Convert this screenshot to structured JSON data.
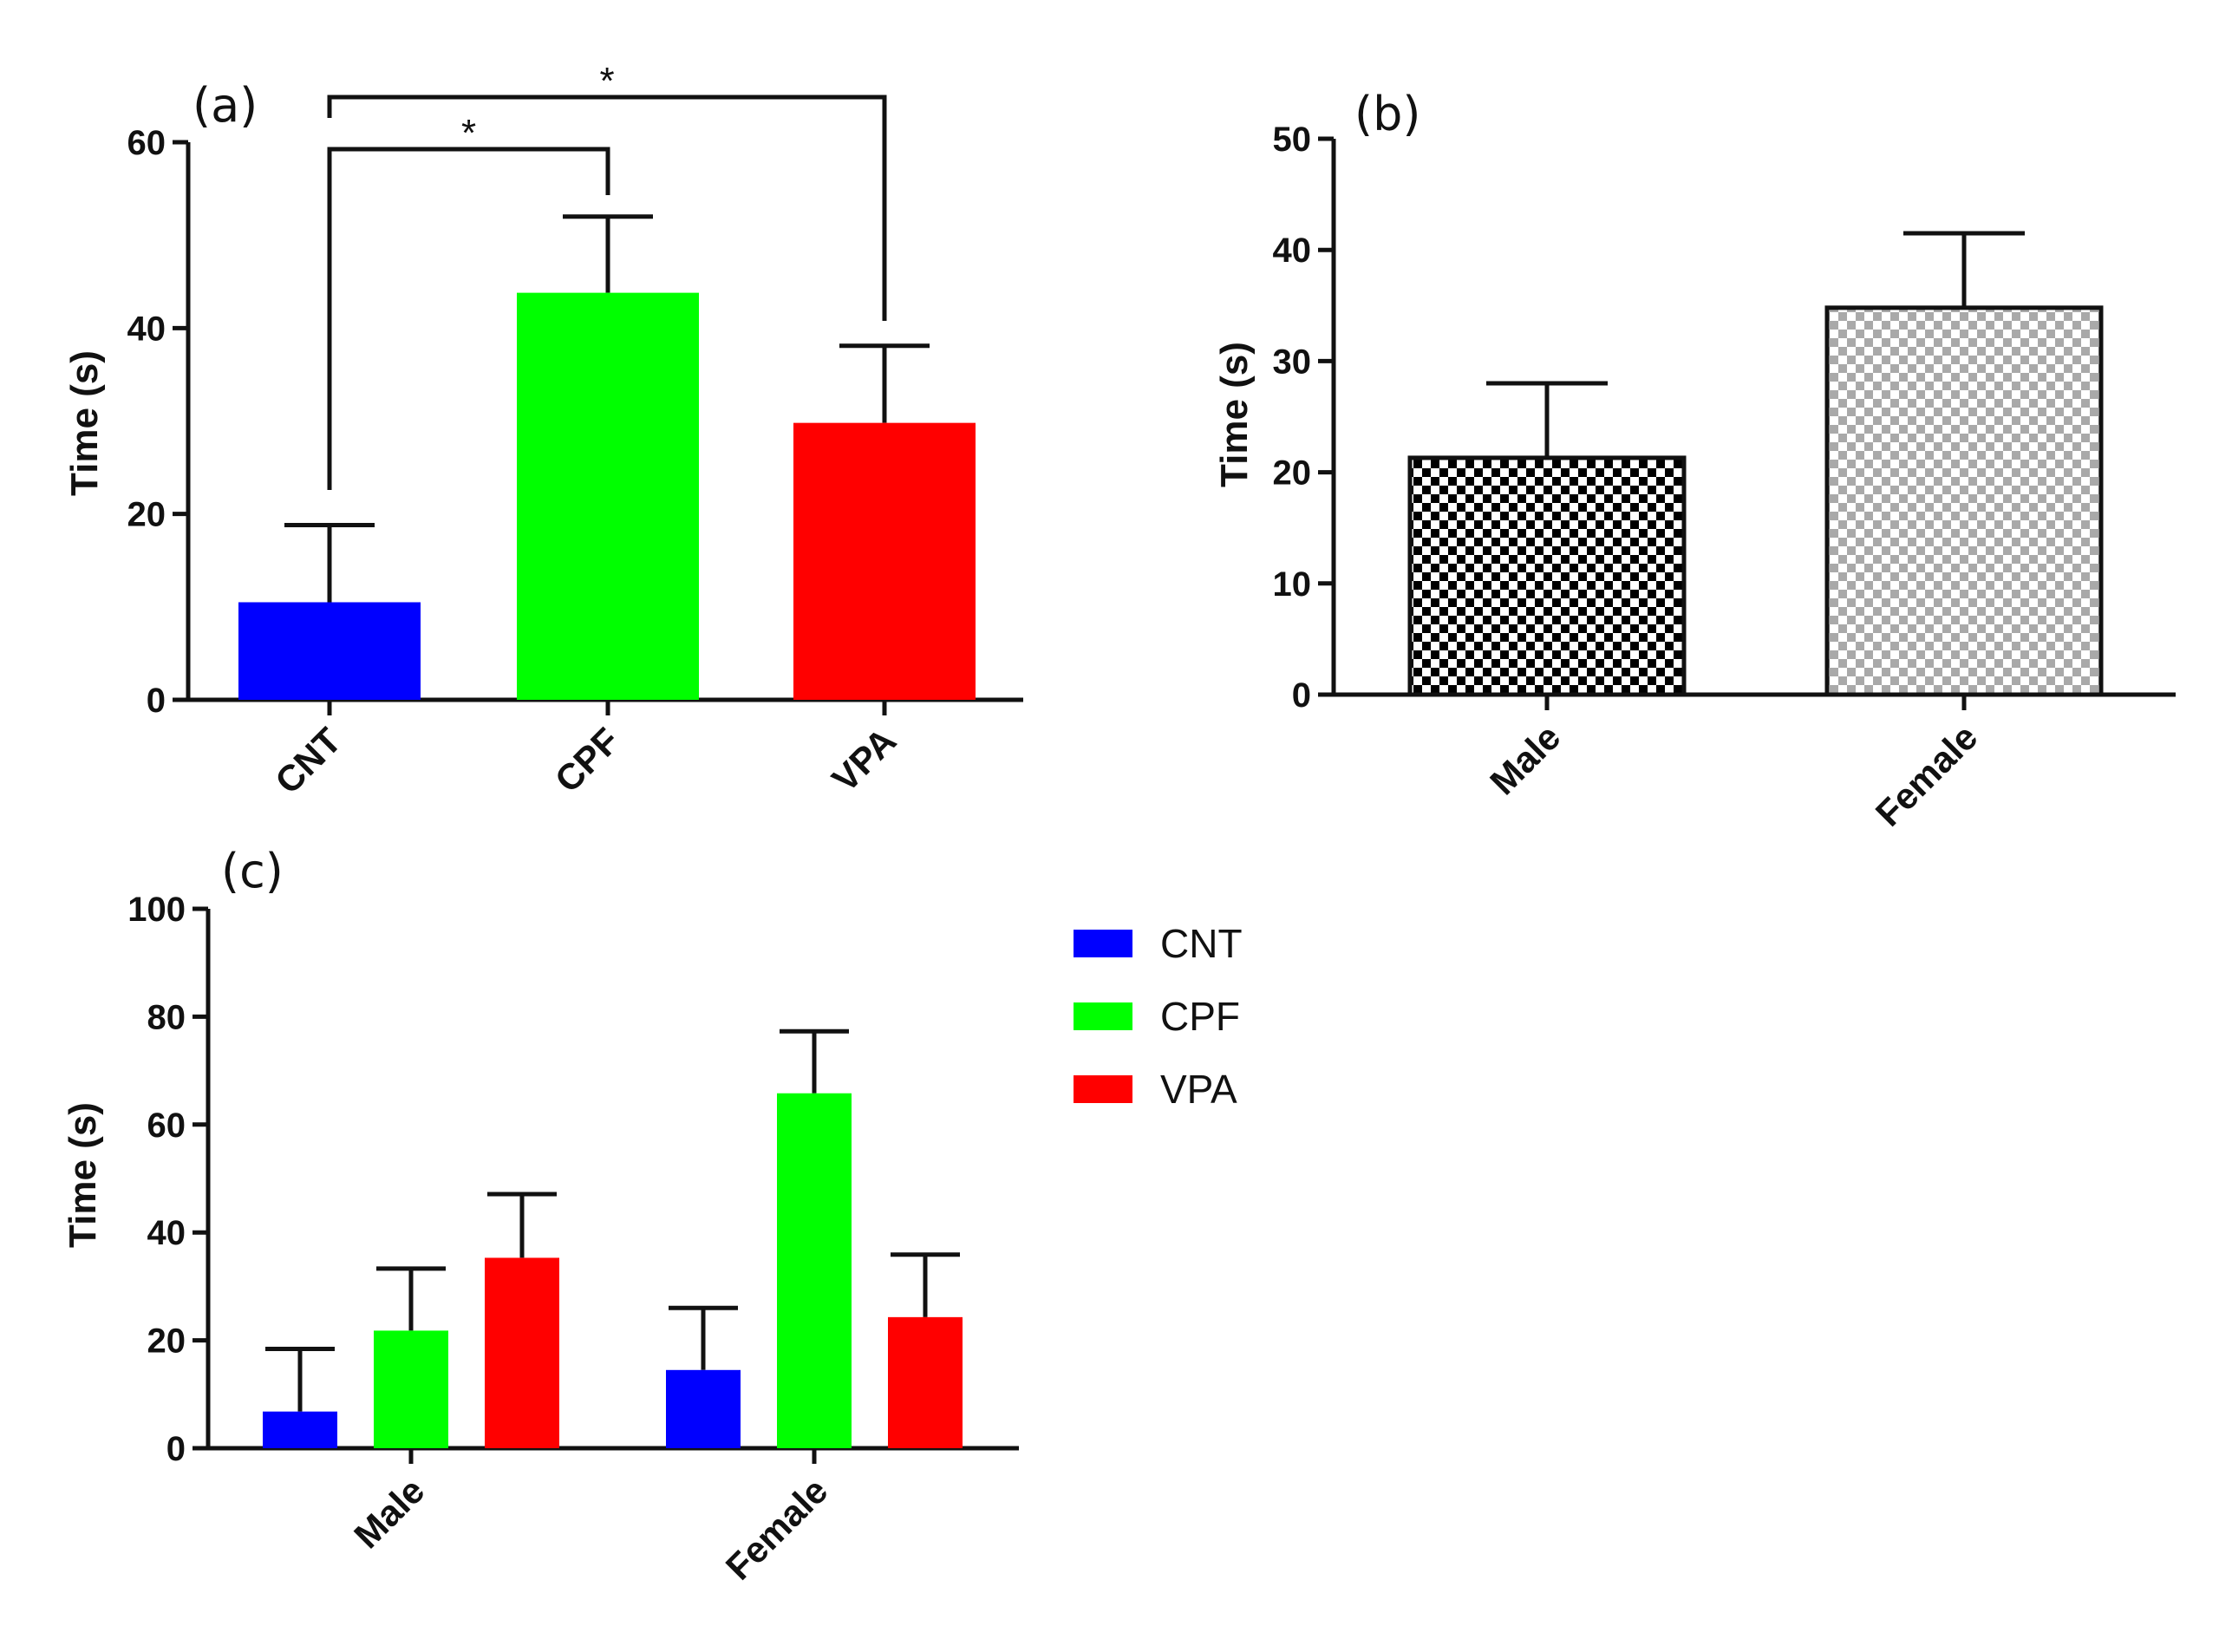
{
  "chart_data": [
    {
      "id": "a",
      "type": "bar",
      "panel_label": "(a)",
      "ylabel": "Time (s)",
      "ylim": [
        0,
        60
      ],
      "yticks": [
        "0",
        "20",
        "40",
        "60"
      ],
      "categories": [
        "CNT",
        "CPF",
        "VPA"
      ],
      "values": [
        10.5,
        43.8,
        29.8
      ],
      "errors": [
        8.3,
        8.2,
        8.3
      ],
      "colors": [
        "#0000ff",
        "#00ff00",
        "#ff0000"
      ],
      "significance": [
        {
          "from": "CNT",
          "to": "CPF",
          "label": "*"
        },
        {
          "from": "CNT",
          "to": "VPA",
          "label": "*"
        }
      ]
    },
    {
      "id": "b",
      "type": "bar",
      "panel_label": "(b)",
      "ylabel": "Time (s)",
      "ylim": [
        0,
        50
      ],
      "yticks": [
        "0",
        "10",
        "20",
        "30",
        "40",
        "50"
      ],
      "categories": [
        "Male",
        "Female"
      ],
      "values": [
        21.3,
        34.8
      ],
      "errors": [
        6.7,
        6.7
      ],
      "fills": [
        "black-white checker",
        "grey-white checker"
      ]
    },
    {
      "id": "c",
      "type": "bar",
      "panel_label": "(c)",
      "ylabel": "Time (s)",
      "ylim": [
        0,
        100
      ],
      "yticks": [
        "0",
        "20",
        "40",
        "60",
        "80",
        "100"
      ],
      "categories": [
        "Male",
        "Female"
      ],
      "series": [
        {
          "name": "CNT",
          "color": "#0000ff",
          "values": [
            6.8,
            14.5
          ],
          "errors": [
            11.6,
            11.5
          ]
        },
        {
          "name": "CPF",
          "color": "#00ff00",
          "values": [
            21.8,
            65.8
          ],
          "errors": [
            11.5,
            11.5
          ]
        },
        {
          "name": "VPA",
          "color": "#ff0000",
          "values": [
            35.3,
            24.3
          ],
          "errors": [
            11.8,
            11.6
          ]
        }
      ],
      "legend": [
        "CNT",
        "CPF",
        "VPA"
      ]
    }
  ]
}
